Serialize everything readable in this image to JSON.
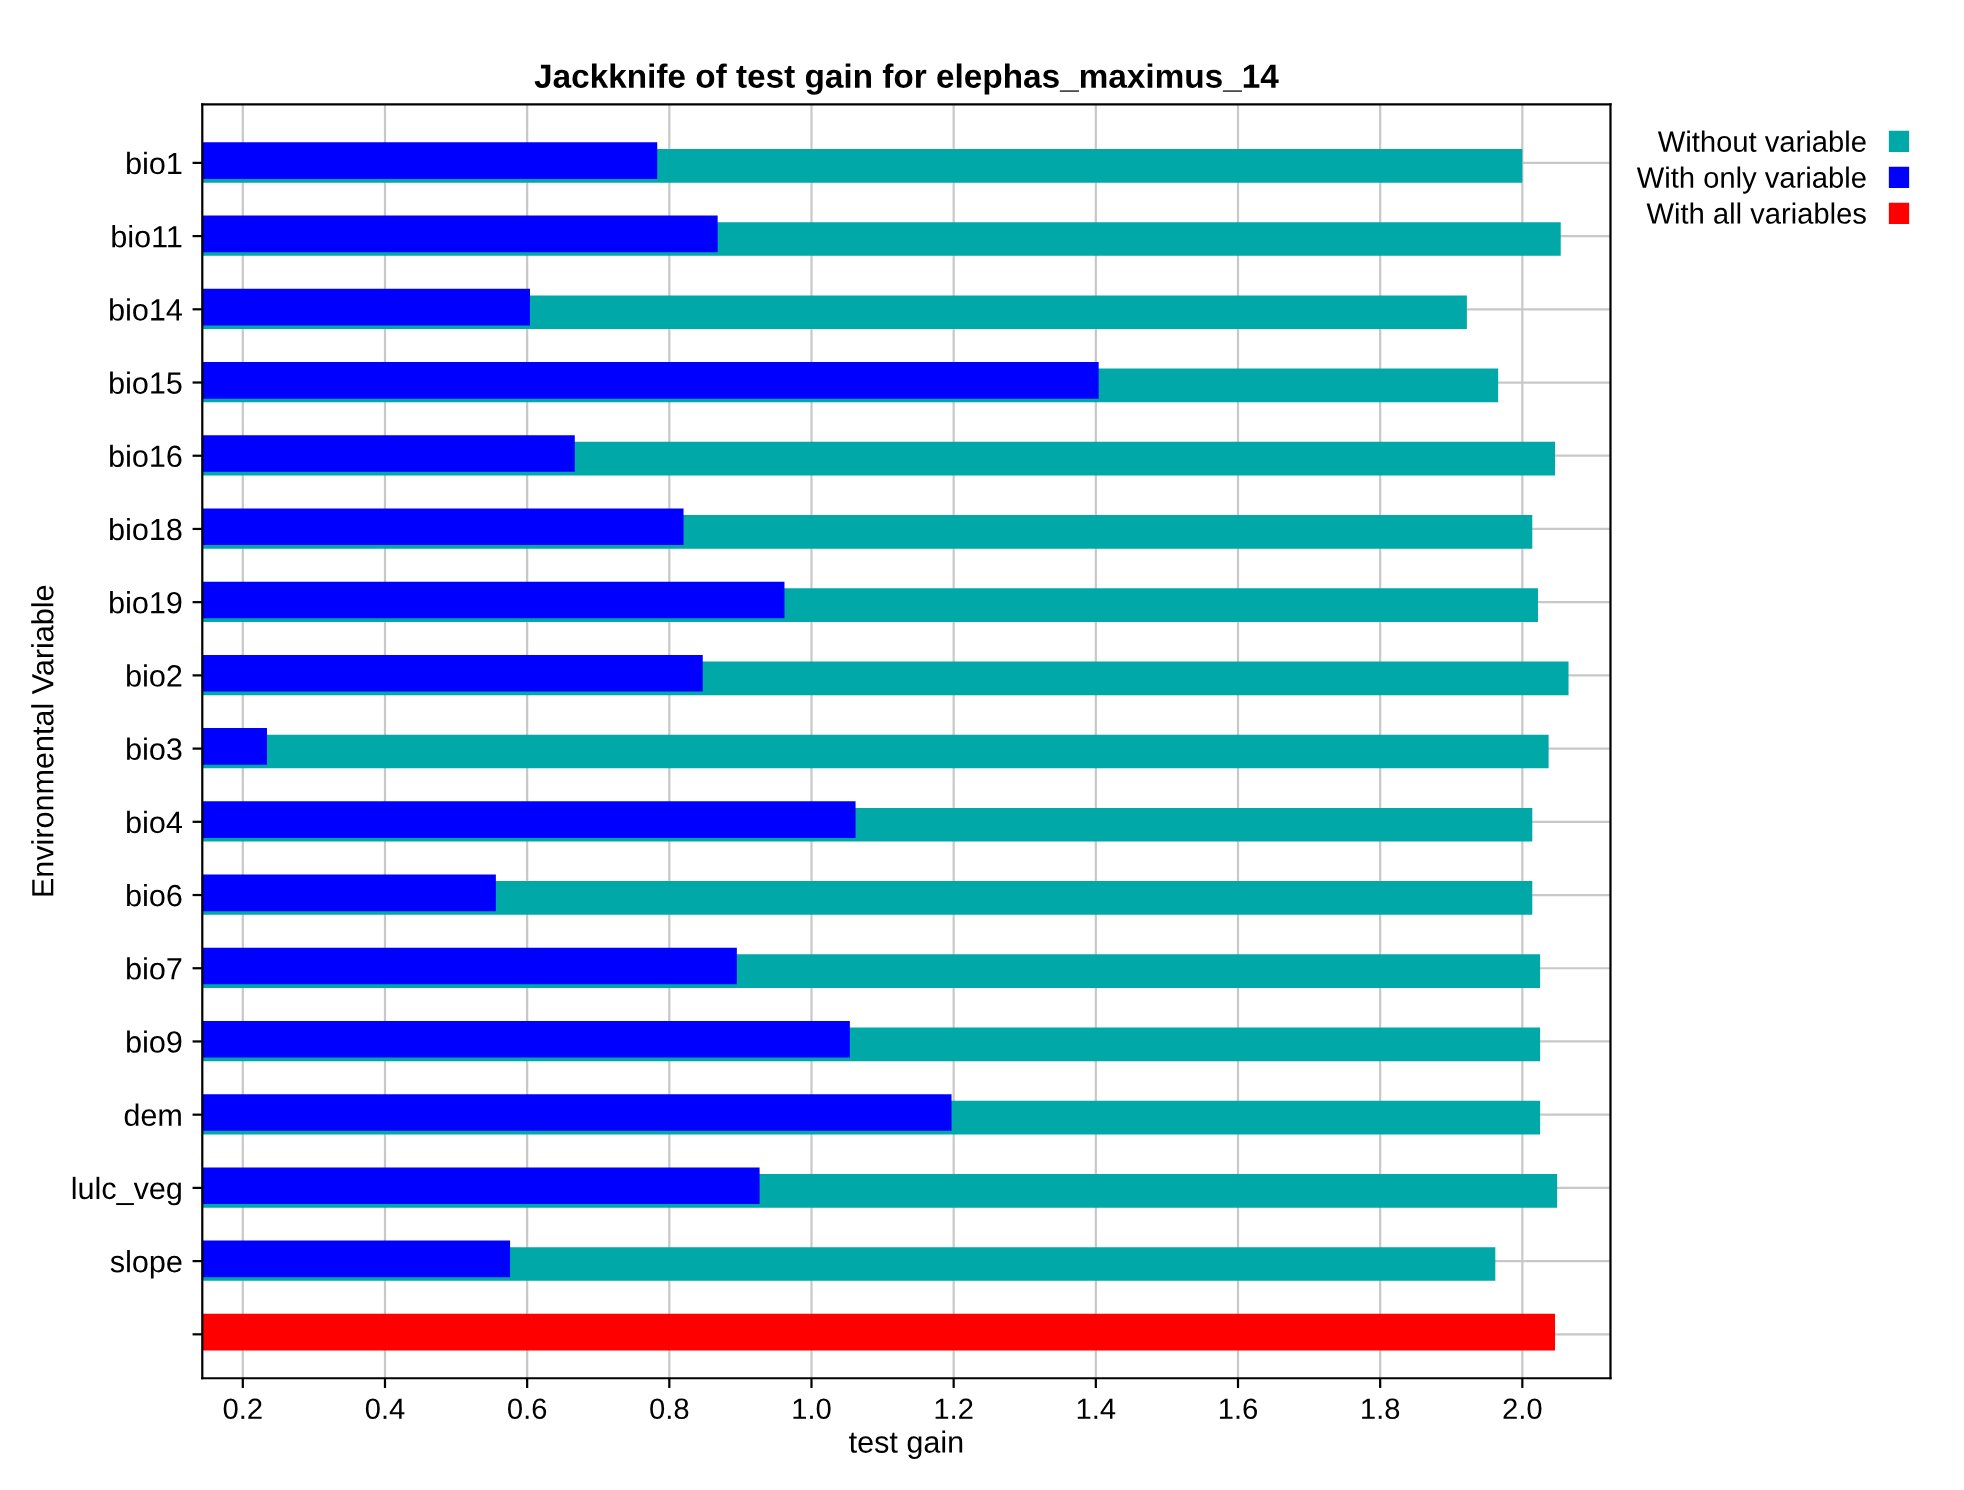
{
  "chart_data": {
    "type": "bar",
    "orientation": "horizontal",
    "title": "Jackknife of test gain for elephas_maximus_14",
    "xlabel": "test gain",
    "ylabel": "Environmental Variable",
    "categories": [
      "bio1",
      "bio11",
      "bio14",
      "bio15",
      "bio16",
      "bio18",
      "bio19",
      "bio2",
      "bio3",
      "bio4",
      "bio6",
      "bio7",
      "bio9",
      "dem",
      "lulc_veg",
      "slope",
      null
    ],
    "series": [
      {
        "name": "Without variable",
        "color": "#00a8a8",
        "values": [
          2.0,
          2.054,
          1.922,
          1.966,
          2.046,
          2.014,
          2.022,
          2.065,
          2.037,
          2.014,
          2.014,
          2.025,
          2.025,
          2.025,
          2.049,
          1.962,
          null
        ]
      },
      {
        "name": "With only variable",
        "color": "#0000ff",
        "values": [
          0.783,
          0.868,
          0.604,
          1.404,
          0.667,
          0.82,
          0.962,
          0.847,
          0.234,
          1.062,
          0.556,
          0.895,
          1.054,
          1.197,
          0.927,
          0.576,
          null
        ]
      },
      {
        "name": "With all variables",
        "color": "#ff0000",
        "values": [
          null,
          null,
          null,
          null,
          null,
          null,
          null,
          null,
          null,
          null,
          null,
          null,
          null,
          null,
          null,
          null,
          2.046
        ]
      }
    ],
    "xlim": [
      0.143,
      2.124
    ],
    "xticks": [
      0.2,
      0.4,
      0.6,
      0.8,
      {
        "value": 1.0,
        "label": "1.0"
      },
      1.2,
      1.4,
      1.6,
      1.8,
      {
        "value": 2.0,
        "label": "2.0"
      }
    ],
    "grid": true,
    "legend": "top right"
  }
}
